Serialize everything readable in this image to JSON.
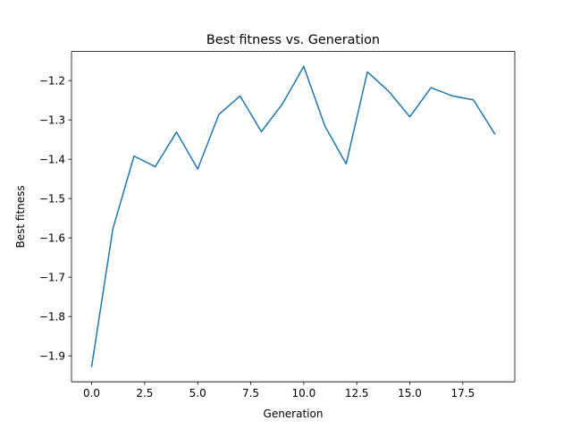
{
  "chart_data": {
    "type": "line",
    "title": "Best fitness vs. Generation",
    "xlabel": "Generation",
    "ylabel": "Best fitness",
    "xlim": [
      -0.95,
      19.95
    ],
    "ylim": [
      -1.966,
      -1.126
    ],
    "xticks": [
      0.0,
      2.5,
      5.0,
      7.5,
      10.0,
      12.5,
      15.0,
      17.5
    ],
    "xtick_labels": [
      "0.0",
      "2.5",
      "5.0",
      "7.5",
      "10.0",
      "12.5",
      "15.0",
      "17.5"
    ],
    "yticks": [
      -1.9,
      -1.8,
      -1.7,
      -1.6,
      -1.5,
      -1.4,
      -1.3,
      -1.2
    ],
    "ytick_labels": [
      "−1.9",
      "−1.8",
      "−1.7",
      "−1.6",
      "−1.5",
      "−1.4",
      "−1.3",
      "−1.2"
    ],
    "grid": false,
    "series": [
      {
        "color": "#1f77b4",
        "x": [
          0,
          1,
          2,
          3,
          4,
          5,
          6,
          7,
          8,
          9,
          10,
          11,
          12,
          13,
          14,
          15,
          16,
          17,
          18,
          19
        ],
        "y": [
          -1.927,
          -1.577,
          -1.392,
          -1.419,
          -1.331,
          -1.425,
          -1.286,
          -1.239,
          -1.33,
          -1.259,
          -1.164,
          -1.316,
          -1.412,
          -1.178,
          -1.227,
          -1.292,
          -1.218,
          -1.239,
          -1.249,
          -1.335
        ]
      }
    ]
  }
}
